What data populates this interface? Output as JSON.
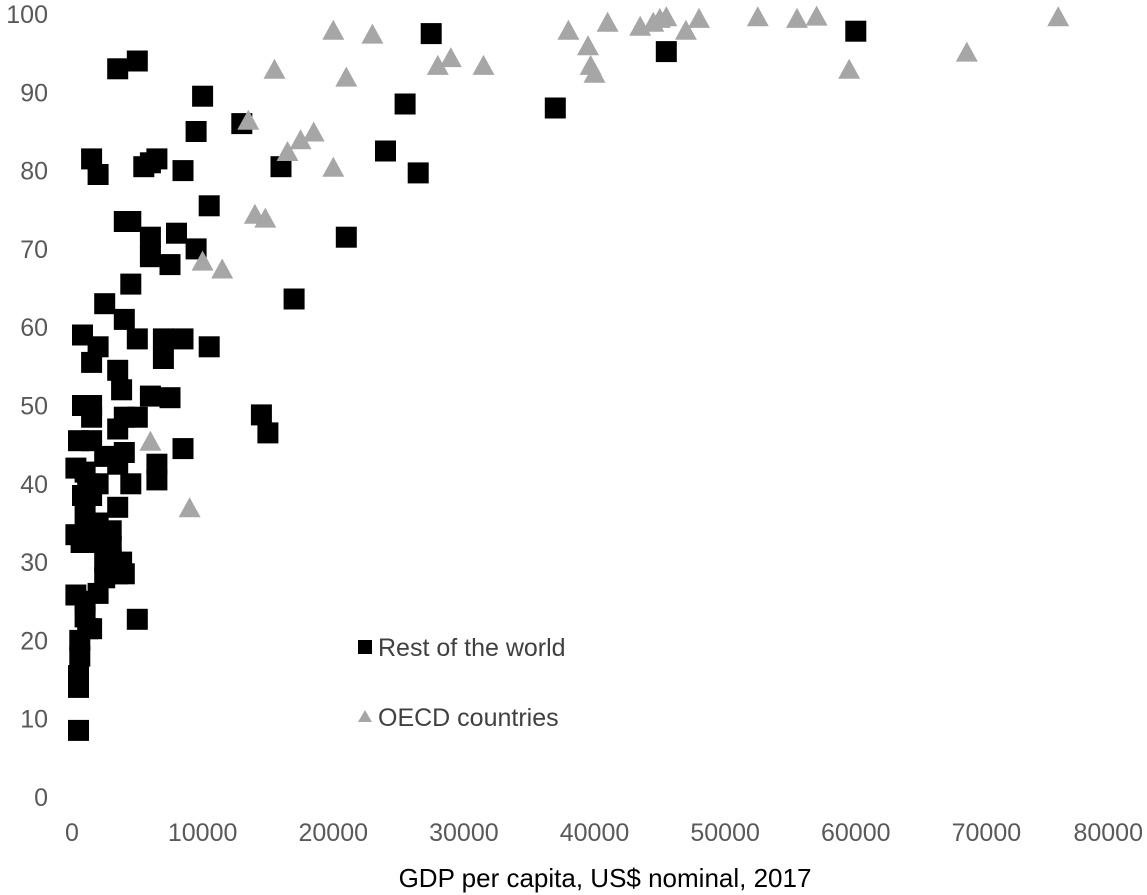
{
  "chart_data": {
    "type": "scatter",
    "title": "",
    "xlabel": "GDP per capita, US$ nominal, 2017",
    "ylabel": "",
    "xlim": [
      0,
      80000
    ],
    "ylim": [
      0,
      100
    ],
    "x_ticks": [
      "0",
      "10000",
      "20000",
      "30000",
      "40000",
      "50000",
      "60000",
      "70000",
      "80000"
    ],
    "y_ticks": [
      "0",
      "10",
      "20",
      "30",
      "40",
      "50",
      "60",
      "70",
      "80",
      "90",
      "100"
    ],
    "grid": false,
    "legend_position": "bottom-center",
    "series": [
      {
        "name": "Rest of the world",
        "marker": "square",
        "color": "#000000",
        "points": [
          [
            500,
            8.5
          ],
          [
            500,
            14
          ],
          [
            500,
            15.5
          ],
          [
            600,
            18
          ],
          [
            600,
            20
          ],
          [
            1200,
            21.5
          ],
          [
            1500,
            21.5
          ],
          [
            1000,
            23
          ],
          [
            5000,
            22.7
          ],
          [
            300,
            25.8
          ],
          [
            1000,
            25
          ],
          [
            2000,
            26
          ],
          [
            2500,
            28
          ],
          [
            3500,
            28.5
          ],
          [
            4000,
            28.5
          ],
          [
            2500,
            30
          ],
          [
            3000,
            30.5
          ],
          [
            3800,
            30
          ],
          [
            3000,
            32
          ],
          [
            2000,
            32.5
          ],
          [
            3000,
            34
          ],
          [
            1500,
            34
          ],
          [
            300,
            33.5
          ],
          [
            700,
            32.5
          ],
          [
            3500,
            37
          ],
          [
            2000,
            35
          ],
          [
            1000,
            36
          ],
          [
            800,
            38.5
          ],
          [
            1500,
            38.5
          ],
          [
            2000,
            40
          ],
          [
            4500,
            40
          ],
          [
            6500,
            40.5
          ],
          [
            1200,
            40
          ],
          [
            300,
            42
          ],
          [
            1000,
            41.5
          ],
          [
            3500,
            42.5
          ],
          [
            6500,
            42.5
          ],
          [
            2500,
            43.5
          ],
          [
            4000,
            44
          ],
          [
            8500,
            44.5
          ],
          [
            500,
            45.5
          ],
          [
            1500,
            45.5
          ],
          [
            3500,
            47
          ],
          [
            4000,
            48.5
          ],
          [
            5000,
            48.5
          ],
          [
            1500,
            48.5
          ],
          [
            800,
            50
          ],
          [
            1500,
            50
          ],
          [
            7500,
            51
          ],
          [
            6000,
            51.2
          ],
          [
            3800,
            52
          ],
          [
            3500,
            54.5
          ],
          [
            1500,
            55.5
          ],
          [
            7000,
            56
          ],
          [
            2000,
            57.5
          ],
          [
            10500,
            57.5
          ],
          [
            7000,
            58.5
          ],
          [
            5000,
            58.5
          ],
          [
            8500,
            58.5
          ],
          [
            800,
            59
          ],
          [
            4000,
            61
          ],
          [
            2500,
            63
          ],
          [
            4500,
            65.5
          ],
          [
            7500,
            68
          ],
          [
            6000,
            69
          ],
          [
            9500,
            70
          ],
          [
            6000,
            71.5
          ],
          [
            8000,
            72
          ],
          [
            4000,
            73.5
          ],
          [
            4500,
            73.5
          ],
          [
            10500,
            75.5
          ],
          [
            2000,
            79.5
          ],
          [
            8500,
            80
          ],
          [
            5500,
            80.5
          ],
          [
            6000,
            81
          ],
          [
            6500,
            81.5
          ],
          [
            1500,
            81.5
          ],
          [
            16000,
            80.5
          ],
          [
            26500,
            79.7
          ],
          [
            24000,
            82.5
          ],
          [
            9500,
            85
          ],
          [
            13000,
            86
          ],
          [
            10000,
            89.5
          ],
          [
            25500,
            88.5
          ],
          [
            37000,
            88
          ],
          [
            3500,
            93
          ],
          [
            5000,
            94
          ],
          [
            27500,
            97.5
          ],
          [
            45500,
            95.2
          ],
          [
            60000,
            97.8
          ],
          [
            14500,
            48.8
          ],
          [
            15000,
            46.5
          ],
          [
            17000,
            63.6
          ],
          [
            21000,
            71.5
          ]
        ]
      },
      {
        "name": "OECD countries",
        "marker": "triangle",
        "color": "#a6a6a6",
        "points": [
          [
            6000,
            45.5
          ],
          [
            9000,
            37
          ],
          [
            10000,
            68.5
          ],
          [
            11500,
            67.5
          ],
          [
            13500,
            86.5
          ],
          [
            14000,
            74.5
          ],
          [
            14800,
            74
          ],
          [
            15500,
            93
          ],
          [
            16500,
            82.5
          ],
          [
            17500,
            84
          ],
          [
            18500,
            85
          ],
          [
            20000,
            80.5
          ],
          [
            20000,
            98
          ],
          [
            21000,
            92
          ],
          [
            23000,
            97.5
          ],
          [
            28000,
            93.5
          ],
          [
            29000,
            94.5
          ],
          [
            31500,
            93.5
          ],
          [
            38000,
            98
          ],
          [
            39500,
            96
          ],
          [
            39700,
            93.5
          ],
          [
            40000,
            92.5
          ],
          [
            41000,
            99
          ],
          [
            43500,
            98.5
          ],
          [
            44500,
            99
          ],
          [
            45000,
            99.5
          ],
          [
            45500,
            99.7
          ],
          [
            47000,
            98
          ],
          [
            48000,
            99.5
          ],
          [
            52500,
            99.7
          ],
          [
            55500,
            99.5
          ],
          [
            57000,
            99.8
          ],
          [
            59500,
            93
          ],
          [
            68500,
            95.2
          ],
          [
            75500,
            99.7
          ]
        ]
      }
    ]
  }
}
